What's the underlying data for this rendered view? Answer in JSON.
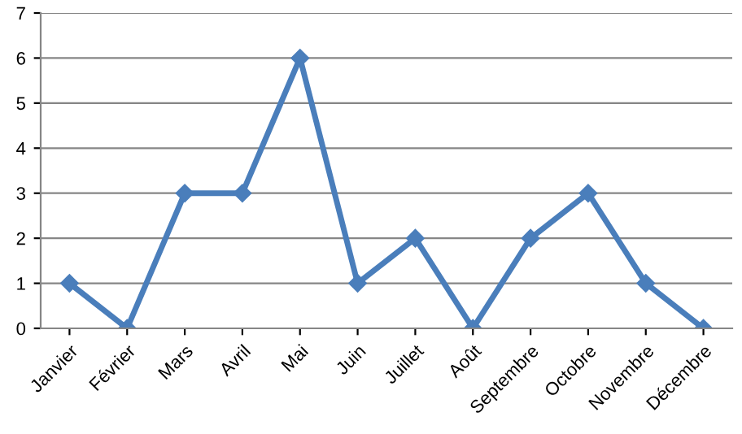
{
  "chart_data": {
    "type": "line",
    "categories": [
      "Janvier",
      "Février",
      "Mars",
      "Avril",
      "Mai",
      "Juin",
      "Juillet",
      "Août",
      "Septembre",
      "Octobre",
      "Novembre",
      "Décembre"
    ],
    "series": [
      {
        "color": "#4a7ebb",
        "values": [
          1,
          0,
          3,
          3,
          6,
          1,
          2,
          0,
          2,
          3,
          1,
          0
        ]
      }
    ],
    "ylim": [
      0,
      7
    ],
    "yticks": [
      0,
      1,
      2,
      3,
      4,
      5,
      6,
      7
    ],
    "grid": "y",
    "marker": "diamond",
    "line_style": "solid",
    "legend": false
  }
}
